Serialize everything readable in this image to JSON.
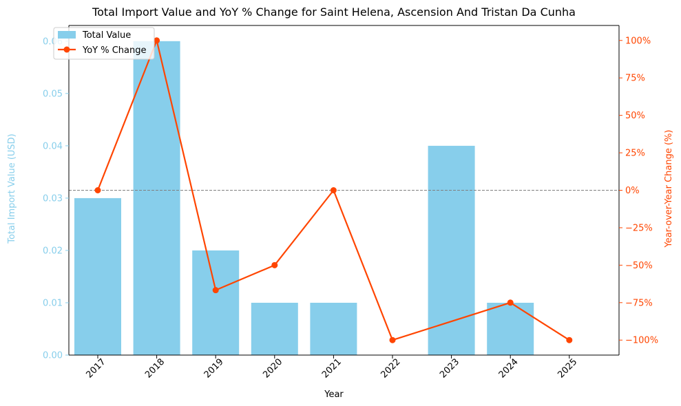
{
  "chart_data": {
    "type": "bar",
    "title": "Total Import Value and YoY % Change for Saint Helena, Ascension And Tristan Da Cunha",
    "xlabel": "Year",
    "ylabel": "Total Import Value (USD)",
    "y2label": "Year-over-Year Change (%)",
    "categories": [
      "2017",
      "2018",
      "2019",
      "2020",
      "2021",
      "2022",
      "2023",
      "2024",
      "2025"
    ],
    "series": [
      {
        "name": "Total Value",
        "type": "bar",
        "axis": "left",
        "color": "#87ceeb",
        "values": [
          0.03,
          0.06,
          0.02,
          0.01,
          0.01,
          0,
          0.04,
          0.01,
          0
        ]
      },
      {
        "name": "YoY % Change",
        "type": "line",
        "axis": "right",
        "color": "#ff4500",
        "values": [
          0,
          100,
          -66.67,
          -50,
          0,
          -100,
          null,
          -75,
          -100
        ]
      }
    ],
    "ylim": [
      0,
      0.063
    ],
    "y2lim": [
      -110,
      110
    ],
    "yticks": [
      "0.00",
      "0.01",
      "0.02",
      "0.03",
      "0.04",
      "0.05",
      "0.06"
    ],
    "y2ticks": [
      "−100%",
      "−75%",
      "−50%",
      "−25%",
      "0%",
      "25%",
      "50%",
      "75%",
      "100%"
    ],
    "reference_line": {
      "axis": "right",
      "value": 0,
      "style": "dashed",
      "color": "#808080"
    },
    "legend": {
      "position": "top-left",
      "entries": [
        "Total Value",
        "YoY % Change"
      ]
    },
    "grid": false,
    "left_axis_color": "#87ceeb",
    "right_axis_color": "#ff4500"
  }
}
